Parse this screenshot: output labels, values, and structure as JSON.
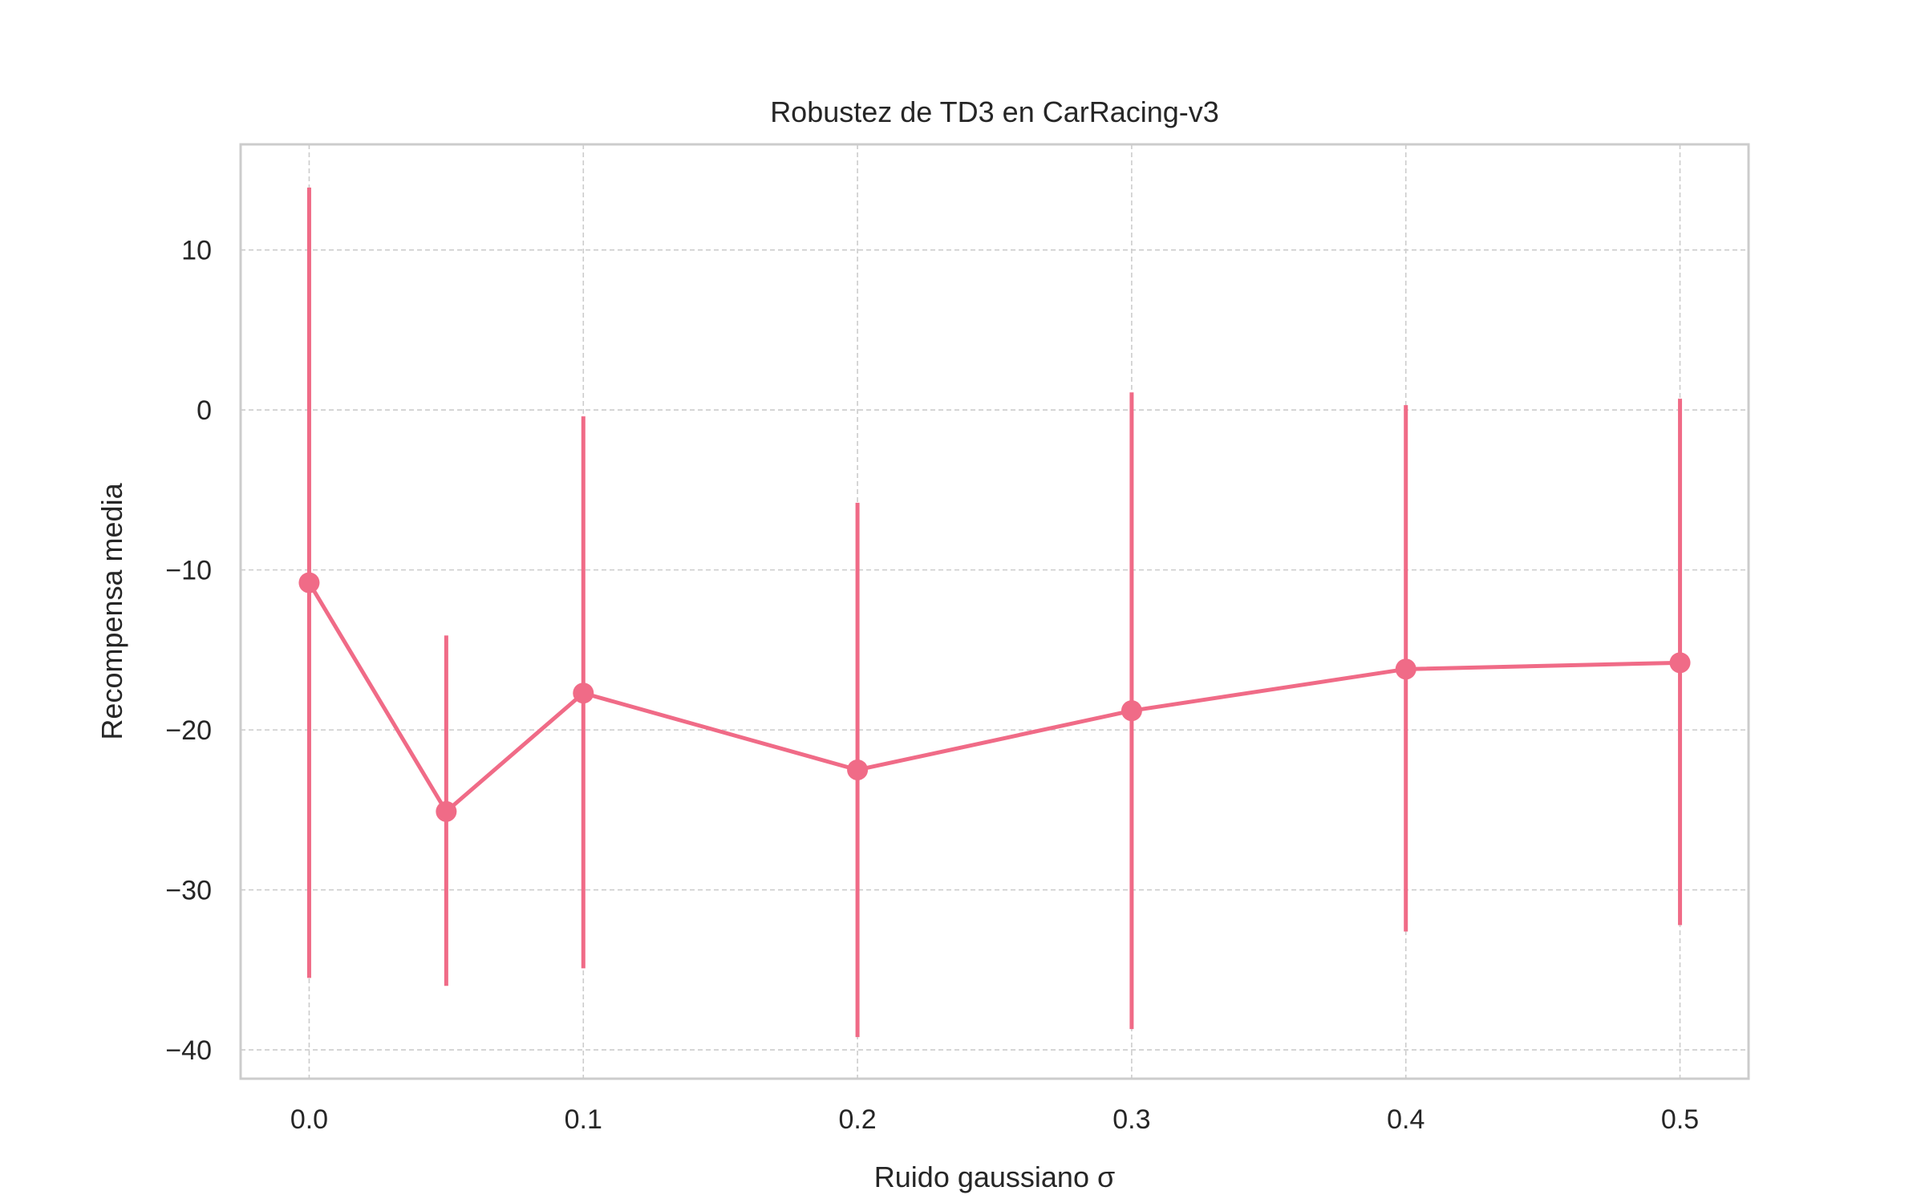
{
  "chart_data": {
    "type": "line",
    "title": "Robustez de TD3 en CarRacing-v3",
    "xlabel": "Ruido gaussiano σ",
    "ylabel": "Recompensa media",
    "xlim": [
      -0.025,
      0.525
    ],
    "ylim": [
      -41.8,
      16.6
    ],
    "x_ticks": [
      0.0,
      0.1,
      0.2,
      0.3,
      0.4,
      0.5
    ],
    "x_tick_labels": [
      "0.0",
      "0.1",
      "0.2",
      "0.3",
      "0.4",
      "0.5"
    ],
    "y_ticks": [
      10,
      0,
      -10,
      -20,
      -30,
      -40
    ],
    "y_tick_labels": [
      "10",
      "0",
      "−10",
      "−20",
      "−30",
      "−40"
    ],
    "grid": true,
    "series": [
      {
        "color": "#f06b87",
        "points": [
          {
            "x": 0.0,
            "y": -10.8,
            "err_low": -35.5,
            "err_high": 13.9
          },
          {
            "x": 0.05,
            "y": -25.1,
            "err_low": -36.0,
            "err_high": -14.1
          },
          {
            "x": 0.1,
            "y": -17.7,
            "err_low": -34.9,
            "err_high": -0.4
          },
          {
            "x": 0.2,
            "y": -22.5,
            "err_low": -39.2,
            "err_high": -5.8
          },
          {
            "x": 0.3,
            "y": -18.8,
            "err_low": -38.7,
            "err_high": 1.1
          },
          {
            "x": 0.4,
            "y": -16.2,
            "err_low": -32.6,
            "err_high": 0.3
          },
          {
            "x": 0.5,
            "y": -15.8,
            "err_low": -32.2,
            "err_high": 0.7
          }
        ]
      }
    ]
  }
}
